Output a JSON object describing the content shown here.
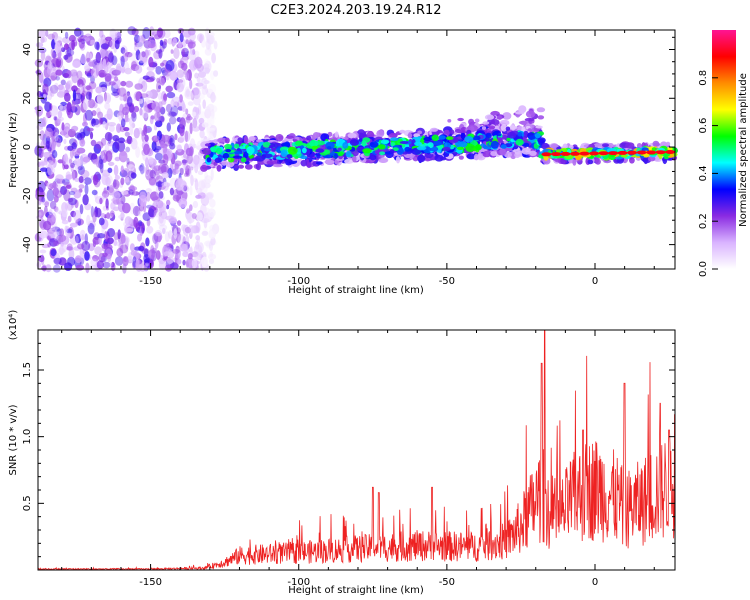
{
  "figure_title": "C2E3.2024.203.19.24.R12",
  "chart_data": [
    {
      "type": "heatmap",
      "title": "",
      "xlabel": "Height of straight line (km)",
      "ylabel": "Frequency (Hz)",
      "xlim": [
        -188,
        27
      ],
      "ylim": [
        -50,
        48
      ],
      "xticks": [
        -150,
        -100,
        -50,
        0
      ],
      "yticks": [
        -40,
        -20,
        0,
        20,
        40
      ],
      "colorbar": {
        "label": "Normalized spectral amplitude",
        "ticks": [
          0.0,
          0.2,
          0.4,
          0.6,
          0.8
        ],
        "range": [
          0,
          1
        ],
        "colormap": [
          "#ffffff",
          "#d9b3ff",
          "#8a2be2",
          "#0000ff",
          "#00ffff",
          "#00ff00",
          "#ffff00",
          "#ff8c00",
          "#ff0000",
          "#ff1493"
        ]
      },
      "features": [
        {
          "name": "noise region",
          "x_range": [
            -188,
            -128
          ],
          "freq_range": [
            -50,
            48
          ],
          "amplitude": 0.1
        },
        {
          "name": "signal band",
          "x_range": [
            -132,
            -18
          ],
          "freq_start": -3,
          "freq_end": 3,
          "amplitude": 0.4
        },
        {
          "name": "upper branch",
          "x_range": [
            -50,
            -18
          ],
          "freq_start": 8,
          "freq_end": 14,
          "amplitude": 0.15
        },
        {
          "name": "signal band",
          "x_range": [
            -18,
            27
          ],
          "freq_start": -3,
          "freq_end": -2,
          "amplitude": 0.9
        }
      ],
      "grid": false
    },
    {
      "type": "line",
      "title": "",
      "xlabel": "Height of straight line (km)",
      "ylabel": "SNR (10 * v/v)",
      "y_multiplier": "(x10⁴)",
      "xlim": [
        -188,
        27
      ],
      "ylim": [
        0,
        1.8
      ],
      "xticks": [
        -150,
        -100,
        -50,
        0
      ],
      "yticks": [
        0.5,
        1.0,
        1.5
      ],
      "ytick_labels": [
        "0.5",
        "1.0",
        "1.5"
      ],
      "color": "#ee2222",
      "envelope": {
        "x": [
          -188,
          -150,
          -132,
          -125,
          -120,
          -100,
          -80,
          -60,
          -40,
          -30,
          -25,
          -22,
          -20,
          -18,
          -16,
          -15,
          -12,
          -8,
          -4,
          0,
          4,
          8,
          10,
          12,
          16,
          20,
          24,
          27
        ],
        "y": [
          0.01,
          0.01,
          0.02,
          0.08,
          0.15,
          0.18,
          0.22,
          0.25,
          0.24,
          0.3,
          0.45,
          0.6,
          0.7,
          0.8,
          0.7,
          0.45,
          0.55,
          0.72,
          0.8,
          0.85,
          0.8,
          0.72,
          0.6,
          0.65,
          0.7,
          0.8,
          0.85,
          0.88
        ]
      },
      "peaks": [
        {
          "x": -17,
          "y": 1.8
        },
        {
          "x": -18,
          "y": 1.55
        },
        {
          "x": -4,
          "y": 1.05
        },
        {
          "x": 10,
          "y": 1.4
        },
        {
          "x": 22,
          "y": 1.25
        },
        {
          "x": 25,
          "y": 1.05
        },
        {
          "x": -75,
          "y": 0.62
        },
        {
          "x": -73,
          "y": 0.58
        },
        {
          "x": -55,
          "y": 0.62
        }
      ],
      "grid": false
    }
  ]
}
